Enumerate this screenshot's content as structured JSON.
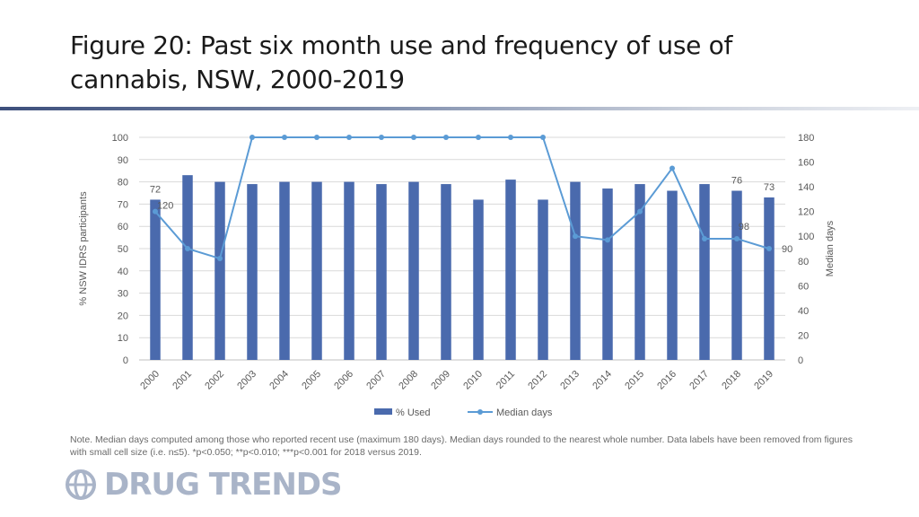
{
  "slide": {
    "title_line1": "Figure 20: Past six month use and frequency of use of",
    "title_line2": "cannabis, NSW, 2000-2019",
    "note_text": "Note. Median days computed among those who reported recent use (maximum 180 days). Median days rounded to the nearest whole number. Data labels have been removed from figures with small cell size (i.e. n≤5). *p<0.050; **p<0.010; ***p<0.001 for 2018 versus 2019.",
    "logo_text": "DRUG TRENDS",
    "logo_icon": "globe-icon"
  },
  "colors": {
    "bar": "#4a6aad",
    "line": "#5b9bd5",
    "rule_dark": "#3d4f7c",
    "axis_text": "#595959",
    "grid": "#d9d9d9"
  },
  "chart_data": {
    "type": "bar",
    "categories": [
      "2000",
      "2001",
      "2002",
      "2003",
      "2004",
      "2005",
      "2006",
      "2007",
      "2008",
      "2009",
      "2010",
      "2011",
      "2012",
      "2013",
      "2014",
      "2015",
      "2016",
      "2017",
      "2018",
      "2019"
    ],
    "series": [
      {
        "name": "% Used",
        "type": "bar",
        "axis": "left",
        "values": [
          72,
          83,
          80,
          79,
          80,
          80,
          80,
          79,
          80,
          79,
          72,
          81,
          72,
          80,
          77,
          79,
          76,
          79,
          76,
          73
        ],
        "data_labels": {
          "0": "72",
          "18": "76",
          "19": "73"
        }
      },
      {
        "name": "Median days",
        "type": "line",
        "axis": "right",
        "values": [
          120,
          90,
          82,
          180,
          180,
          180,
          180,
          180,
          180,
          180,
          180,
          180,
          180,
          100,
          97,
          120,
          155,
          98,
          98,
          90
        ],
        "data_labels": {
          "0": "120",
          "18": "98",
          "19": "90"
        }
      }
    ],
    "ylabel": "% NSW IDRS participants",
    "ylim": [
      0,
      100
    ],
    "yticks": [
      0,
      10,
      20,
      30,
      40,
      50,
      60,
      70,
      80,
      90,
      100
    ],
    "y2label": "Median days",
    "y2lim": [
      0,
      180
    ],
    "y2ticks": [
      0,
      20,
      40,
      60,
      80,
      100,
      120,
      140,
      160,
      180
    ],
    "grid": true,
    "legend": "bottom-center"
  }
}
